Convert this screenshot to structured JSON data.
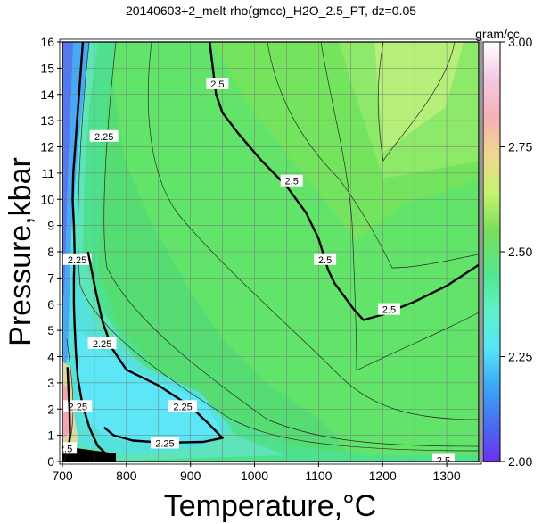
{
  "chart_data": {
    "type": "contour",
    "title": "20140603+2_melt-rho(gmcc)_H2O_2.5_PT, dz=0.05",
    "xlabel": "Temperature,°C",
    "ylabel": "Pressure,kbar",
    "xlim": [
      700,
      1350
    ],
    "ylim": [
      0,
      16
    ],
    "x_ticks": [
      700,
      800,
      900,
      1000,
      1100,
      1200,
      1300
    ],
    "y_ticks": [
      0,
      1,
      2,
      3,
      4,
      5,
      6,
      7,
      8,
      9,
      10,
      11,
      12,
      13,
      14,
      15,
      16
    ],
    "x_tick_labels": [
      "700",
      "800",
      "900",
      "1000",
      "1100",
      "1200",
      "1300"
    ],
    "y_tick_labels": [
      "0",
      "1",
      "2",
      "3",
      "4",
      "5",
      "6",
      "7",
      "8",
      "9",
      "10",
      "11",
      "12",
      "13",
      "14",
      "15",
      "16"
    ],
    "grid": true,
    "contour_interval": 0.05,
    "colorbar": {
      "label": "gram/cc",
      "range": [
        2.0,
        3.0
      ],
      "ticks": [
        2.0,
        2.25,
        2.5,
        2.75,
        3.0
      ],
      "tick_labels": [
        "2.00",
        "2.25",
        "2.50",
        "2.75",
        "3.00"
      ],
      "placement": "right",
      "colors": [
        "#6a2ff0",
        "#4a6ff0",
        "#3aa8f5",
        "#57e6f8",
        "#5ef0c8",
        "#52e68e",
        "#7ade5a",
        "#c6f270",
        "#f0d890",
        "#f6b0b4",
        "#f3c8e2",
        "#ffffff"
      ]
    },
    "labeled_contours": [
      {
        "level": 2.25,
        "points": [
          [
            772,
            0.2
          ],
          [
            755,
            0.6
          ],
          [
            742,
            1.3
          ],
          [
            731,
            2.2
          ],
          [
            724,
            3.2
          ],
          [
            721,
            4.2
          ],
          [
            719,
            5.2
          ],
          [
            718,
            6.0
          ],
          [
            718,
            7.0
          ],
          [
            719,
            8.0
          ],
          [
            718,
            9.0
          ],
          [
            716,
            10.0
          ],
          [
            717,
            11.0
          ],
          [
            720,
            12.0
          ],
          [
            723,
            13.0
          ],
          [
            726,
            14.0
          ],
          [
            729,
            15.0
          ],
          [
            732,
            16.0
          ]
        ],
        "label_positions": [
          [
            724,
            2.1
          ],
          [
            723,
            7.7
          ],
          [
            765,
            12.4
          ]
        ]
      },
      {
        "level": 2.25,
        "points": [
          [
            740,
            8.0
          ],
          [
            752,
            6.5
          ],
          [
            763,
            5.3
          ],
          [
            778,
            4.3
          ],
          [
            800,
            3.5
          ],
          [
            850,
            2.9
          ],
          [
            900,
            2.1
          ],
          [
            930,
            1.4
          ],
          [
            950,
            0.9
          ],
          [
            920,
            0.75
          ],
          [
            860,
            0.72
          ],
          [
            810,
            0.8
          ],
          [
            780,
            1.0
          ],
          [
            765,
            1.3
          ]
        ],
        "label_positions": [
          [
            762,
            4.5
          ],
          [
            888,
            2.1
          ],
          [
            860,
            0.7
          ]
        ]
      },
      {
        "level": 2.5,
        "points": [
          [
            930,
            16.0
          ],
          [
            935,
            15.0
          ],
          [
            940,
            14.0
          ],
          [
            950,
            13.3
          ],
          [
            975,
            12.5
          ],
          [
            1010,
            11.5
          ],
          [
            1050,
            10.5
          ],
          [
            1080,
            9.5
          ],
          [
            1100,
            8.5
          ],
          [
            1115,
            7.3
          ],
          [
            1125,
            6.8
          ],
          [
            1140,
            6.3
          ],
          [
            1155,
            5.8
          ],
          [
            1170,
            5.4
          ],
          [
            1200,
            5.6
          ],
          [
            1250,
            6.1
          ],
          [
            1300,
            6.7
          ],
          [
            1350,
            7.5
          ]
        ],
        "label_positions": [
          [
            942,
            14.4
          ],
          [
            1058,
            10.7
          ],
          [
            1110,
            7.7
          ],
          [
            1210,
            5.8
          ]
        ]
      },
      {
        "level": 2.5,
        "points": [
          [
            700,
            0.35
          ],
          [
            709,
            0.4
          ],
          [
            712,
            1.0
          ],
          [
            711,
            2.0
          ],
          [
            709,
            3.0
          ],
          [
            708,
            3.6
          ]
        ],
        "label_positions": [
          [
            705,
            0.5
          ],
          [
            1295,
            0.05
          ]
        ]
      }
    ]
  }
}
